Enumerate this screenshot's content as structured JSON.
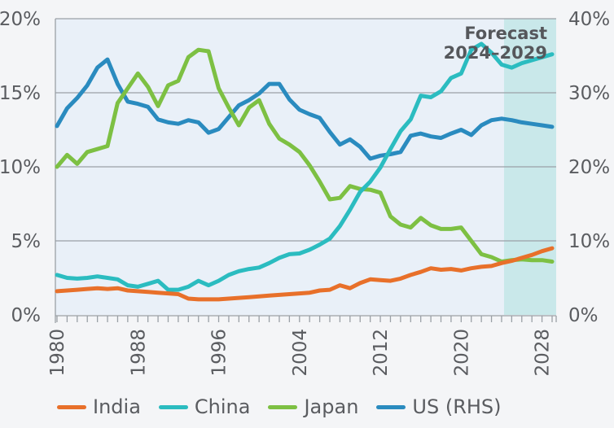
{
  "chart_data": {
    "type": "line",
    "title": "",
    "xlabel": "",
    "ylabel_left": "",
    "ylabel_right": "",
    "x": [
      1980,
      1981,
      1982,
      1983,
      1984,
      1985,
      1986,
      1987,
      1988,
      1989,
      1990,
      1991,
      1992,
      1993,
      1994,
      1995,
      1996,
      1997,
      1998,
      1999,
      2000,
      2001,
      2002,
      2003,
      2004,
      2005,
      2006,
      2007,
      2008,
      2009,
      2010,
      2011,
      2012,
      2013,
      2014,
      2015,
      2016,
      2017,
      2018,
      2019,
      2020,
      2021,
      2022,
      2023,
      2024,
      2025,
      2026,
      2027,
      2028,
      2029
    ],
    "x_tick_labels": [
      "1980",
      "1988",
      "1996",
      "2004",
      "2012",
      "2020",
      "2028"
    ],
    "x_ticks": [
      1980,
      1988,
      1996,
      2004,
      2012,
      2020,
      2028
    ],
    "xlim": [
      1980,
      2029
    ],
    "ylim_left": [
      0,
      20
    ],
    "ylim_right": [
      0,
      40
    ],
    "y_ticks_left": [
      "0%",
      "5%",
      "10%",
      "15%",
      "20%"
    ],
    "y_ticks_right": [
      "0%",
      "10%",
      "20%",
      "30%",
      "40%"
    ],
    "grid": true,
    "legend_position": "bottom",
    "annotation": {
      "line1": "Forecast",
      "line2": "2024–2029",
      "range": [
        2024,
        2029
      ]
    },
    "series": [
      {
        "name": "India",
        "axis": "left",
        "color": "#e8702a",
        "values": [
          1.6,
          1.65,
          1.7,
          1.75,
          1.8,
          1.75,
          1.8,
          1.65,
          1.6,
          1.55,
          1.5,
          1.45,
          1.4,
          1.1,
          1.05,
          1.05,
          1.05,
          1.1,
          1.15,
          1.2,
          1.25,
          1.3,
          1.35,
          1.4,
          1.45,
          1.5,
          1.65,
          1.7,
          2.0,
          1.8,
          2.15,
          2.4,
          2.35,
          2.3,
          2.45,
          2.7,
          2.9,
          3.15,
          3.05,
          3.1,
          3.0,
          3.15,
          3.25,
          3.3,
          3.5,
          3.65,
          3.85,
          4.05,
          4.3,
          4.5
        ]
      },
      {
        "name": "China",
        "axis": "left",
        "color": "#2bbcc0",
        "values": [
          2.7,
          2.5,
          2.45,
          2.5,
          2.6,
          2.5,
          2.4,
          2.0,
          1.9,
          2.1,
          2.3,
          1.7,
          1.7,
          1.9,
          2.3,
          2.0,
          2.3,
          2.7,
          2.95,
          3.1,
          3.2,
          3.5,
          3.85,
          4.1,
          4.15,
          4.4,
          4.75,
          5.15,
          6.0,
          7.1,
          8.3,
          9.0,
          9.95,
          11.2,
          12.4,
          13.2,
          14.8,
          14.7,
          15.1,
          16.0,
          16.3,
          17.9,
          18.3,
          17.7,
          16.9,
          16.7,
          17.0,
          17.2,
          17.4,
          17.6
        ]
      },
      {
        "name": "Japan",
        "axis": "left",
        "color": "#7dc043",
        "values": [
          10.0,
          10.8,
          10.2,
          11.0,
          11.2,
          11.4,
          14.3,
          15.3,
          16.3,
          15.4,
          14.1,
          15.5,
          15.8,
          17.4,
          17.9,
          17.8,
          15.3,
          14.0,
          12.8,
          14.0,
          14.5,
          12.9,
          11.9,
          11.5,
          11.0,
          10.1,
          9.0,
          7.8,
          7.9,
          8.7,
          8.5,
          8.45,
          8.25,
          6.65,
          6.1,
          5.9,
          6.55,
          6.05,
          5.8,
          5.8,
          5.9,
          5.0,
          4.1,
          3.9,
          3.6,
          3.7,
          3.75,
          3.7,
          3.7,
          3.6
        ]
      },
      {
        "name": "US (RHS)",
        "axis": "right",
        "color": "#2a8bbf",
        "values": [
          25.5,
          27.9,
          29.3,
          31.0,
          33.4,
          34.5,
          31.2,
          28.8,
          28.5,
          28.1,
          26.4,
          26.0,
          25.8,
          26.3,
          26.0,
          24.6,
          25.1,
          26.7,
          28.3,
          29.0,
          29.9,
          31.2,
          31.2,
          29.1,
          27.7,
          27.1,
          26.6,
          24.7,
          23.0,
          23.7,
          22.7,
          21.1,
          21.5,
          21.7,
          22.0,
          24.2,
          24.5,
          24.1,
          23.9,
          24.5,
          25.0,
          24.3,
          25.6,
          26.3,
          26.5,
          26.3,
          26.0,
          25.8,
          25.6,
          25.4
        ]
      }
    ]
  },
  "legend": [
    {
      "label": "India",
      "color": "#e8702a"
    },
    {
      "label": "China",
      "color": "#2bbcc0"
    },
    {
      "label": "Japan",
      "color": "#7dc043"
    },
    {
      "label": "US (RHS)",
      "color": "#2a8bbf"
    }
  ],
  "colors": {
    "plot_background": "#e9f0f8",
    "forecast_shade": "#c9e8ea",
    "gridline": "#9aa0a6",
    "text": "#5a5c60"
  }
}
